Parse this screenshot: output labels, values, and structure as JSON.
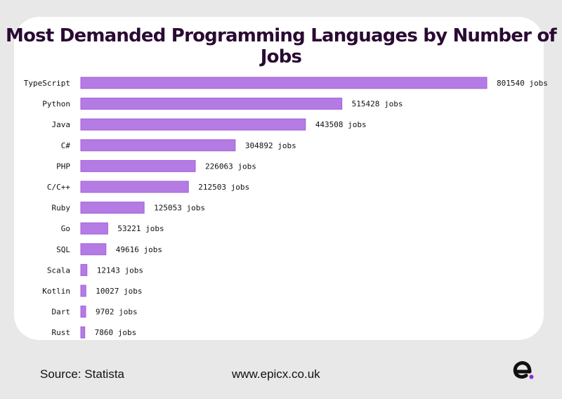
{
  "title": "Most Demanded Programming Languages by Number of Jobs",
  "footer": {
    "source": "Source: Statista",
    "website": "www.epicx.co.uk"
  },
  "colors": {
    "bar": "#b57be4",
    "bar_border": "#a060d8",
    "title": "#2a0a33",
    "background": "#e8e8e8",
    "card": "#ffffff",
    "logo_dot": "#8a2be2"
  },
  "value_suffix": " jobs",
  "chart_data": {
    "type": "bar",
    "orientation": "horizontal",
    "title": "Most Demanded Programming Languages by Number of Jobs",
    "categories": [
      "TypeScript",
      "Python",
      "Java",
      "C#",
      "PHP",
      "C/C++",
      "Ruby",
      "Go",
      "SQL",
      "Scala",
      "Kotlin",
      "Dart",
      "Rust"
    ],
    "values": [
      801540,
      515428,
      443508,
      304892,
      226063,
      212503,
      125053,
      53221,
      49616,
      12143,
      10027,
      9702,
      7860
    ],
    "value_labels": [
      "801540 jobs",
      "515428 jobs",
      "443508 jobs",
      "304892 jobs",
      "226063 jobs",
      "212503 jobs",
      "125053 jobs",
      "53221 jobs",
      "49616 jobs",
      "12143 jobs",
      "10027 jobs",
      "9702 jobs",
      "7860 jobs"
    ],
    "xlabel": "",
    "ylabel": "",
    "grid": false,
    "legend": "none"
  }
}
